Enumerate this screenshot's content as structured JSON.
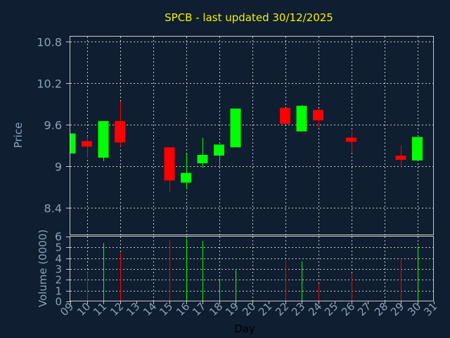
{
  "chart_data": {
    "type": "candlestick",
    "title": "SPCB - last updated 30/12/2025",
    "xlabel": "Day",
    "price_panel": {
      "ylabel": "Price",
      "ylim": [
        8.0,
        10.87
      ],
      "yticks": [
        8.4,
        9,
        9.6,
        10.2,
        10.8
      ],
      "ytick_labels": [
        "8.4",
        "9",
        "9.6",
        "10.2",
        "10.8"
      ],
      "grid": true
    },
    "volume_panel": {
      "ylabel": "Volume (0000)",
      "ylim": [
        0,
        6
      ],
      "yticks": [
        0,
        1,
        2,
        3,
        4,
        5,
        6
      ],
      "ytick_labels": [
        "0",
        "1",
        "2",
        "3",
        "4",
        "5",
        "6"
      ],
      "grid": true
    },
    "x_range": [
      9,
      31
    ],
    "x_ticks": [
      9,
      10,
      11,
      12,
      13,
      14,
      15,
      16,
      17,
      18,
      19,
      20,
      21,
      22,
      23,
      24,
      25,
      26,
      27,
      28,
      29,
      30,
      31
    ],
    "x_tick_labels": [
      "09",
      "10",
      "11",
      "12",
      "13",
      "14",
      "15",
      "16",
      "17",
      "18",
      "19",
      "20",
      "21",
      "22",
      "23",
      "24",
      "25",
      "26",
      "27",
      "28",
      "29",
      "30",
      "31"
    ],
    "colors": {
      "up": "#00ff00",
      "down": "#ff0000",
      "background": "#0f1e30",
      "grid": "#c8c8c8",
      "title": "#f2f200",
      "axis_text": "#8aa2bd"
    },
    "candles": [
      {
        "day": 9,
        "open": 9.18,
        "close": 9.47,
        "high": 9.47,
        "low": 9.18,
        "direction": "up"
      },
      {
        "day": 10,
        "open": 9.36,
        "close": 9.28,
        "high": 9.43,
        "low": 9.12,
        "direction": "down"
      },
      {
        "day": 11,
        "open": 9.12,
        "close": 9.65,
        "high": 9.65,
        "low": 9.07,
        "direction": "up"
      },
      {
        "day": 12,
        "open": 9.65,
        "close": 9.34,
        "high": 9.93,
        "low": 9.28,
        "direction": "down"
      },
      {
        "day": 15,
        "open": 9.27,
        "close": 8.79,
        "high": 9.27,
        "low": 8.63,
        "direction": "down"
      },
      {
        "day": 16,
        "open": 8.76,
        "close": 8.9,
        "high": 9.17,
        "low": 8.66,
        "direction": "up"
      },
      {
        "day": 17,
        "open": 9.04,
        "close": 9.16,
        "high": 9.41,
        "low": 8.97,
        "direction": "up"
      },
      {
        "day": 18,
        "open": 9.15,
        "close": 9.31,
        "high": 9.31,
        "low": 9.0,
        "direction": "up"
      },
      {
        "day": 19,
        "open": 9.27,
        "close": 9.83,
        "high": 9.83,
        "low": 9.27,
        "direction": "up"
      },
      {
        "day": 22,
        "open": 9.84,
        "close": 9.61,
        "high": 9.84,
        "low": 9.61,
        "direction": "down"
      },
      {
        "day": 23,
        "open": 9.5,
        "close": 9.87,
        "high": 9.88,
        "low": 9.5,
        "direction": "up"
      },
      {
        "day": 24,
        "open": 9.81,
        "close": 9.66,
        "high": 9.83,
        "low": 9.55,
        "direction": "down"
      },
      {
        "day": 26,
        "open": 9.41,
        "close": 9.35,
        "high": 9.51,
        "low": 9.2,
        "direction": "down"
      },
      {
        "day": 29,
        "open": 9.15,
        "close": 9.09,
        "high": 9.3,
        "low": 8.98,
        "direction": "down"
      },
      {
        "day": 30,
        "open": 9.08,
        "close": 9.42,
        "high": 9.42,
        "low": 9.08,
        "direction": "up"
      }
    ],
    "volume": [
      {
        "day": 10,
        "value": 2.7,
        "direction": "down"
      },
      {
        "day": 11,
        "value": 5.4,
        "direction": "up"
      },
      {
        "day": 12,
        "value": 4.5,
        "direction": "down"
      },
      {
        "day": 15,
        "value": 5.7,
        "direction": "down"
      },
      {
        "day": 16,
        "value": 5.8,
        "direction": "up"
      },
      {
        "day": 17,
        "value": 5.6,
        "direction": "up"
      },
      {
        "day": 18,
        "value": 2.1,
        "direction": "up"
      },
      {
        "day": 19,
        "value": 2.9,
        "direction": "up"
      },
      {
        "day": 22,
        "value": 3.8,
        "direction": "down"
      },
      {
        "day": 23,
        "value": 3.7,
        "direction": "up"
      },
      {
        "day": 24,
        "value": 1.6,
        "direction": "down"
      },
      {
        "day": 26,
        "value": 2.6,
        "direction": "down"
      },
      {
        "day": 29,
        "value": 4.0,
        "direction": "down"
      },
      {
        "day": 30,
        "value": 5.1,
        "direction": "up"
      }
    ]
  }
}
